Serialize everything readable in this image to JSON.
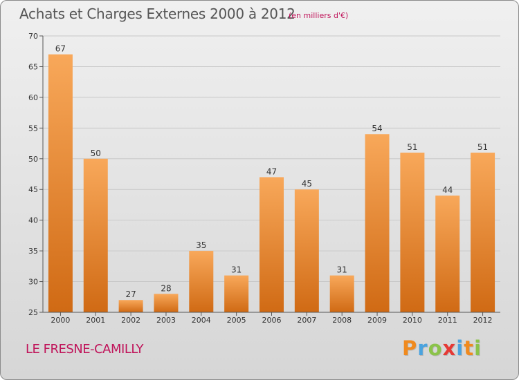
{
  "header": {
    "title": "Achats et Charges Externes 2000 à 2012",
    "subtitle": "(en milliers d'€)"
  },
  "footer": {
    "commune": "LE FRESNE-CAMILLY",
    "logo_letters": [
      {
        "ch": "P",
        "color": "#f08a1e"
      },
      {
        "ch": "r",
        "color": "#4aa3df"
      },
      {
        "ch": "o",
        "color": "#8bc34a"
      },
      {
        "ch": "x",
        "color": "#e53935"
      },
      {
        "ch": "i",
        "color": "#4aa3df"
      },
      {
        "ch": "t",
        "color": "#f08a1e"
      },
      {
        "ch": "i",
        "color": "#8bc34a"
      }
    ]
  },
  "colors": {
    "bar_top": "#f8a85a",
    "bar_bottom": "#d06a14",
    "grid": "#c8c8c8",
    "accent": "#c0145a"
  },
  "chart_data": {
    "type": "bar",
    "categories": [
      "2000",
      "2001",
      "2002",
      "2003",
      "2004",
      "2005",
      "2006",
      "2007",
      "2008",
      "2009",
      "2010",
      "2011",
      "2012"
    ],
    "values": [
      67,
      50,
      27,
      28,
      35,
      31,
      47,
      45,
      31,
      54,
      51,
      44,
      51
    ],
    "ylim": [
      25,
      70
    ],
    "yticks": [
      25,
      30,
      35,
      40,
      45,
      50,
      55,
      60,
      65,
      70
    ],
    "grid": true,
    "data_labels": true
  }
}
